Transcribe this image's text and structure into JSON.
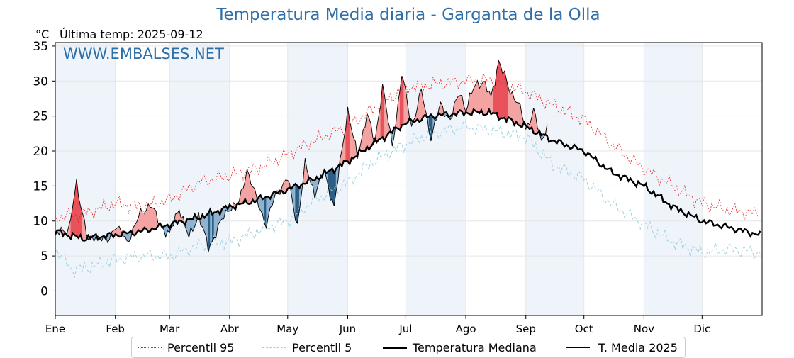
{
  "page": {
    "title": "Temperatura Media diaria - Garganta de la Olla",
    "unit": "°C",
    "last_temp": "Última temp: 2025-09-12",
    "watermark": "WWW.EMBALSES.NET"
  },
  "legend": [
    {
      "label": "Percentil 95",
      "color": "#e8211d",
      "style": "dotted"
    },
    {
      "label": "Percentil 5",
      "color": "#9fd0e0",
      "style": "dashed"
    },
    {
      "label": "Temperatura Mediana",
      "color": "#000000",
      "style": "thick"
    },
    {
      "label": "T. Media 2025",
      "color": "#000000",
      "style": "thin"
    }
  ],
  "colors": {
    "above_fill": "#f4a3a3",
    "above_strong": "#e8525a",
    "below_fill": "#8fb3d0",
    "below_strong": "#2d5f86",
    "band": "#eef4fa",
    "grid": "#e6e6e6"
  },
  "chart_data": {
    "type": "line",
    "title": "Temperatura Media diaria - Garganta de la Olla",
    "ylabel": "°C",
    "ylim": [
      -3.5,
      35.5
    ],
    "yticks": [
      0,
      5,
      10,
      15,
      20,
      25,
      30,
      35
    ],
    "months": [
      "Ene",
      "Feb",
      "Mar",
      "Abr",
      "May",
      "Jun",
      "Jul",
      "Ago",
      "Sep",
      "Oct",
      "Nov",
      "Dic"
    ],
    "month_start_days": [
      1,
      32,
      60,
      91,
      121,
      152,
      182,
      213,
      244,
      274,
      305,
      335
    ],
    "days_in_year": 365,
    "grid": true,
    "series": [
      {
        "name": "Percentil 95",
        "days": [
          1,
          15,
          32,
          45,
          60,
          75,
          91,
          105,
          121,
          135,
          152,
          165,
          182,
          195,
          213,
          225,
          244,
          258,
          274,
          288,
          305,
          320,
          335,
          350,
          365
        ],
        "values": [
          10.5,
          11,
          12.5,
          12,
          13,
          15.5,
          16.5,
          17.5,
          19.5,
          21.5,
          23.5,
          26,
          29,
          29.5,
          30,
          30.2,
          28.5,
          26.5,
          24.5,
          21,
          17.5,
          15,
          12.5,
          11.5,
          11
        ]
      },
      {
        "name": "Percentil 5",
        "days": [
          1,
          10,
          20,
          32,
          45,
          60,
          75,
          91,
          105,
          121,
          135,
          152,
          165,
          182,
          195,
          213,
          225,
          244,
          258,
          274,
          288,
          305,
          320,
          335,
          350,
          365
        ],
        "values": [
          6,
          3,
          3.5,
          4.5,
          5,
          5,
          6.5,
          7,
          8.5,
          10,
          13,
          15.5,
          18.5,
          21,
          22.5,
          23.5,
          23,
          22,
          18,
          16,
          12.5,
          9.5,
          7,
          5.5,
          6,
          5.5
        ]
      },
      {
        "name": "Temperatura Mediana",
        "days": [
          1,
          15,
          32,
          45,
          60,
          75,
          91,
          105,
          121,
          135,
          152,
          165,
          182,
          195,
          213,
          225,
          244,
          258,
          274,
          288,
          305,
          320,
          335,
          350,
          365
        ],
        "values": [
          8.5,
          7.5,
          8,
          8.5,
          9.5,
          10.5,
          12,
          13,
          14.5,
          16,
          18.5,
          21,
          24,
          25,
          25.5,
          25.5,
          23.5,
          21.5,
          20,
          17,
          15,
          12,
          10,
          9,
          8
        ]
      },
      {
        "name": "T. Media 2025",
        "days": [
          1,
          5,
          8,
          12,
          18,
          22,
          28,
          32,
          38,
          45,
          50,
          55,
          60,
          65,
          70,
          75,
          80,
          85,
          91,
          96,
          100,
          105,
          110,
          115,
          121,
          126,
          130,
          135,
          140,
          145,
          152,
          157,
          162,
          166,
          170,
          175,
          180,
          185,
          190,
          195,
          200,
          205,
          210,
          213,
          218,
          222,
          226,
          230,
          235,
          240,
          244,
          248,
          252,
          255
        ],
        "values": [
          8,
          9,
          8.5,
          15.5,
          7,
          8,
          7,
          9.5,
          7,
          11,
          12.5,
          9.5,
          8,
          12,
          7.5,
          11,
          6,
          9,
          12,
          12.5,
          17.5,
          13,
          9.5,
          14,
          16,
          9.5,
          18,
          14,
          17,
          12,
          26,
          19,
          25.5,
          21,
          29.5,
          20.5,
          31,
          23.5,
          28.5,
          22,
          26.5,
          24.5,
          28.5,
          26,
          29.5,
          30,
          27.5,
          33,
          29,
          27,
          23,
          26,
          21,
          24
        ]
      }
    ]
  }
}
